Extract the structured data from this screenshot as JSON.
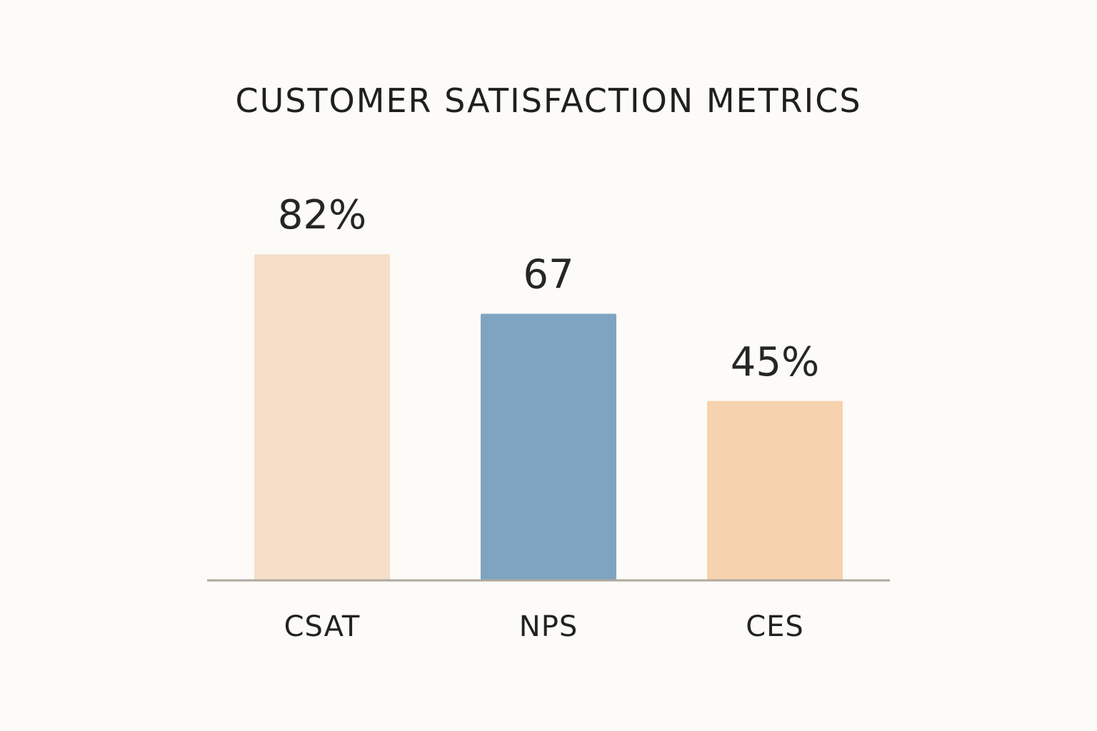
{
  "chart_data": {
    "type": "bar",
    "title": "CUSTOMER SATISFACTION METRICS",
    "xlabel": "",
    "ylabel": "",
    "ylim": [
      0,
      100
    ],
    "grid": false,
    "legend": "none",
    "categories": [
      "CSAT",
      "NPS",
      "CES"
    ],
    "values": [
      82,
      67,
      45
    ],
    "value_labels": [
      "82%",
      "67",
      "45%"
    ],
    "colors": [
      "#f5dfc8",
      "#7fa4c2",
      "#f7d2ae"
    ]
  },
  "axis_color": "#b0a8a0"
}
